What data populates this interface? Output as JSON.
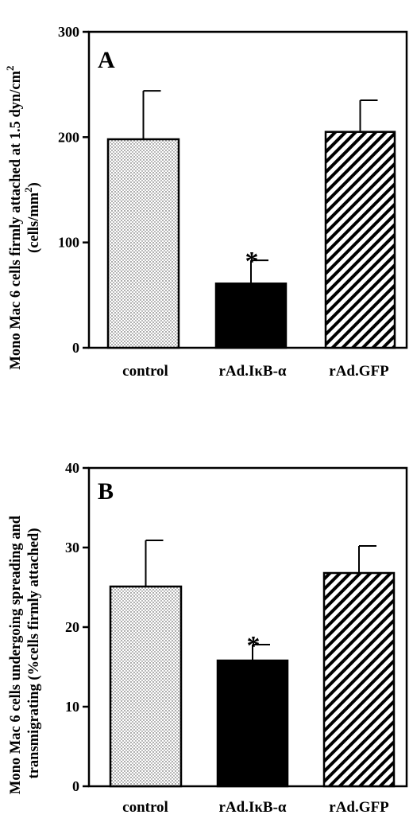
{
  "chart_data": [
    {
      "type": "bar",
      "panel": "A",
      "categories": [
        "control",
        "rAd.IκB-α",
        "rAd.GFP"
      ],
      "values": [
        198,
        61,
        205
      ],
      "errors": [
        46,
        22,
        30
      ],
      "significance": [
        "",
        "*",
        ""
      ],
      "ylim": [
        0,
        300
      ],
      "yticks": [
        "0",
        "100",
        "200",
        "300"
      ],
      "ylabel_lines": [
        "Mono Mac 6 cells firmly attached at 1.5 dyn/cm",
        "(cells/mm",
        ")"
      ],
      "ylabel_sups": [
        "2",
        "2"
      ],
      "fills": [
        "dots",
        "#000000",
        "hatch"
      ]
    },
    {
      "type": "bar",
      "panel": "B",
      "categories": [
        "control",
        "rAd.IκB-α",
        "rAd.GFP"
      ],
      "values": [
        25.1,
        15.8,
        26.8
      ],
      "errors": [
        5.8,
        2.0,
        3.4
      ],
      "significance": [
        "",
        "*",
        ""
      ],
      "ylim": [
        0,
        40
      ],
      "yticks": [
        "0",
        "10",
        "20",
        "30",
        "40"
      ],
      "ylabel_lines": [
        "Mono Mac 6 cells undergoing spreading and",
        "transmigrating (%cells firmly attached)"
      ],
      "ylabel_sups": [],
      "fills": [
        "dots",
        "#000000",
        "hatch"
      ]
    }
  ]
}
